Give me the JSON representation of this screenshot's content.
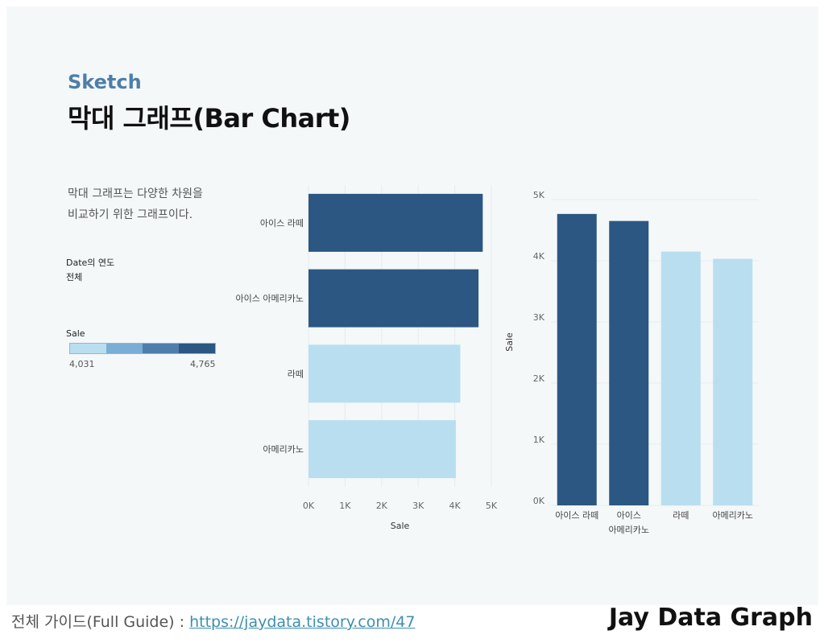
{
  "header": {
    "subtitle": "Sketch",
    "title": "막대 그래프(Bar Chart)"
  },
  "description": {
    "line1": "막대 그래프는 다양한 차원을",
    "line2": "비교하기 위한 그래프이다."
  },
  "filter": {
    "label": "Date의 연도",
    "value": "전체"
  },
  "legend": {
    "title": "Sale",
    "min_label": "4,031",
    "max_label": "4,765",
    "colors": [
      "#b9def0",
      "#7aaed4",
      "#4f7eab",
      "#2b5782"
    ]
  },
  "chart_data": [
    {
      "type": "bar",
      "orientation": "horizontal",
      "categories": [
        "아이스 라떼",
        "아이스 아메리카노",
        "라떼",
        "아메리카노"
      ],
      "values": [
        4765,
        4650,
        4150,
        4031
      ],
      "colors": [
        "#2b5782",
        "#2b5782",
        "#b9def0",
        "#b9def0"
      ],
      "xlabel": "Sale",
      "ylabel": "",
      "xlim": [
        0,
        5000
      ],
      "ticks": [
        0,
        1000,
        2000,
        3000,
        4000,
        5000
      ],
      "tick_labels": [
        "0K",
        "1K",
        "2K",
        "3K",
        "4K",
        "5K"
      ]
    },
    {
      "type": "bar",
      "orientation": "vertical",
      "categories": [
        "아이스 라떼",
        "아이스 아메리카노",
        "라떼",
        "아메리카노"
      ],
      "category_lines": [
        [
          "아이스 라떼"
        ],
        [
          "아이스",
          "아메리카노"
        ],
        [
          "라떼"
        ],
        [
          "아메리카노"
        ]
      ],
      "values": [
        4765,
        4650,
        4150,
        4031
      ],
      "colors": [
        "#2b5782",
        "#2b5782",
        "#b9def0",
        "#b9def0"
      ],
      "xlabel": "",
      "ylabel": "Sale",
      "ylim": [
        0,
        5000
      ],
      "ticks": [
        0,
        1000,
        2000,
        3000,
        4000,
        5000
      ],
      "tick_labels": [
        "0K",
        "1K",
        "2K",
        "3K",
        "4K",
        "5K"
      ]
    }
  ],
  "footer": {
    "guide_label": "전체 가이드(Full Guide) : ",
    "guide_link": "https://jaydata.tistory.com/47",
    "brand": "Jay Data Graph"
  }
}
